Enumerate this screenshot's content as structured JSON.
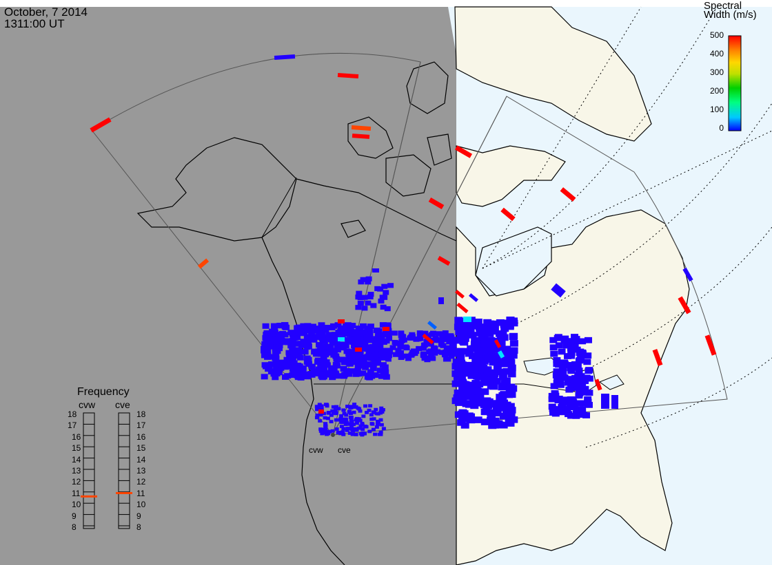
{
  "header": {
    "date": "October, 7 2014",
    "time": "1311:00 UT"
  },
  "colorbar": {
    "title_line1": "Spectral",
    "title_line2": "Width (m/s)",
    "ticks": [
      "500",
      "400",
      "300",
      "200",
      "100",
      "0"
    ],
    "scale_colors": [
      "#0000ff",
      "#00c8ff",
      "#00ff80",
      "#00d000",
      "#c0e000",
      "#ffd700",
      "#ff8000",
      "#ff0000"
    ]
  },
  "frequency_panel": {
    "title": "Frequency",
    "radars": [
      {
        "name": "cvw",
        "frequency_mhz": 10.6
      },
      {
        "name": "cve",
        "frequency_mhz": 10.9
      }
    ],
    "ticks": [
      "18",
      "17",
      "16",
      "15",
      "14",
      "13",
      "12",
      "11",
      "10",
      "9",
      "8"
    ],
    "marker_color": "#ff4500"
  },
  "sites": [
    {
      "name": "cvw"
    },
    {
      "name": "cve"
    }
  ],
  "map_colors": {
    "night_ocean": "#999999",
    "night_land": "#999999",
    "day_ocean": "#eaf6fd",
    "day_land": "#f8f6e8",
    "coastline": "#000000",
    "fov_outline": "#555555"
  }
}
